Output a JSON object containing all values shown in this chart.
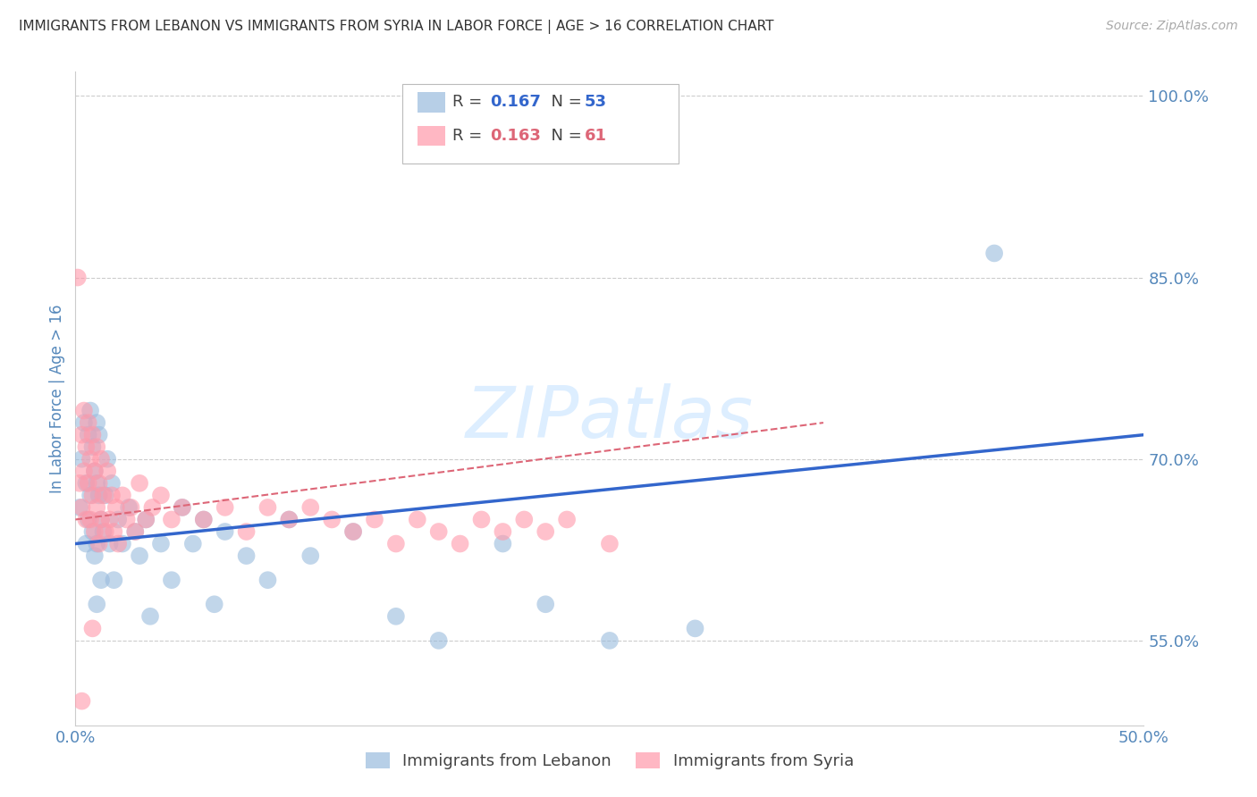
{
  "title": "IMMIGRANTS FROM LEBANON VS IMMIGRANTS FROM SYRIA IN LABOR FORCE | AGE > 16 CORRELATION CHART",
  "source": "Source: ZipAtlas.com",
  "ylabel": "In Labor Force | Age > 16",
  "xlim": [
    0.0,
    0.5
  ],
  "ylim": [
    0.48,
    1.02
  ],
  "yticks": [
    0.55,
    0.7,
    0.85,
    1.0
  ],
  "ytick_labels": [
    "55.0%",
    "70.0%",
    "85.0%",
    "100.0%"
  ],
  "xticks": [
    0.0,
    0.5
  ],
  "xtick_labels": [
    "0.0%",
    "50.0%"
  ],
  "lebanon_R": 0.167,
  "lebanon_N": 53,
  "syria_R": 0.163,
  "syria_N": 61,
  "lebanon_color": "#99BBDD",
  "syria_color": "#FF99AA",
  "lebanon_line_color": "#3366CC",
  "syria_line_color": "#DD6677",
  "background_color": "#FFFFFF",
  "grid_color": "#CCCCCC",
  "watermark": "ZIPatlas",
  "watermark_color": "#DDEEFF",
  "title_color": "#333333",
  "tick_color": "#5588BB",
  "legend_label_lebanon": "Immigrants from Lebanon",
  "legend_label_syria": "Immigrants from Syria",
  "lebanon_scatter_x": [
    0.002,
    0.003,
    0.004,
    0.005,
    0.005,
    0.006,
    0.006,
    0.007,
    0.007,
    0.008,
    0.008,
    0.009,
    0.009,
    0.01,
    0.01,
    0.01,
    0.01,
    0.011,
    0.011,
    0.012,
    0.012,
    0.013,
    0.014,
    0.015,
    0.016,
    0.017,
    0.018,
    0.02,
    0.022,
    0.025,
    0.028,
    0.03,
    0.033,
    0.035,
    0.04,
    0.045,
    0.05,
    0.055,
    0.06,
    0.065,
    0.07,
    0.08,
    0.09,
    0.1,
    0.11,
    0.13,
    0.15,
    0.17,
    0.2,
    0.22,
    0.25,
    0.29,
    0.43
  ],
  "lebanon_scatter_y": [
    0.66,
    0.7,
    0.73,
    0.68,
    0.63,
    0.72,
    0.65,
    0.74,
    0.67,
    0.71,
    0.64,
    0.69,
    0.62,
    0.73,
    0.68,
    0.63,
    0.58,
    0.67,
    0.72,
    0.65,
    0.6,
    0.64,
    0.67,
    0.7,
    0.63,
    0.68,
    0.6,
    0.65,
    0.63,
    0.66,
    0.64,
    0.62,
    0.65,
    0.57,
    0.63,
    0.6,
    0.66,
    0.63,
    0.65,
    0.58,
    0.64,
    0.62,
    0.6,
    0.65,
    0.62,
    0.64,
    0.57,
    0.55,
    0.63,
    0.58,
    0.55,
    0.56,
    0.87
  ],
  "syria_scatter_x": [
    0.001,
    0.002,
    0.003,
    0.003,
    0.004,
    0.004,
    0.005,
    0.005,
    0.006,
    0.006,
    0.007,
    0.007,
    0.008,
    0.008,
    0.009,
    0.009,
    0.01,
    0.01,
    0.011,
    0.011,
    0.012,
    0.012,
    0.013,
    0.014,
    0.015,
    0.016,
    0.017,
    0.018,
    0.019,
    0.02,
    0.022,
    0.024,
    0.026,
    0.028,
    0.03,
    0.033,
    0.036,
    0.04,
    0.045,
    0.05,
    0.06,
    0.07,
    0.08,
    0.09,
    0.1,
    0.11,
    0.12,
    0.13,
    0.14,
    0.15,
    0.16,
    0.17,
    0.18,
    0.19,
    0.2,
    0.21,
    0.22,
    0.23,
    0.25,
    0.003,
    0.008
  ],
  "syria_scatter_y": [
    0.85,
    0.68,
    0.72,
    0.66,
    0.74,
    0.69,
    0.71,
    0.65,
    0.73,
    0.68,
    0.7,
    0.65,
    0.72,
    0.67,
    0.69,
    0.64,
    0.71,
    0.66,
    0.68,
    0.63,
    0.7,
    0.65,
    0.67,
    0.64,
    0.69,
    0.65,
    0.67,
    0.64,
    0.66,
    0.63,
    0.67,
    0.65,
    0.66,
    0.64,
    0.68,
    0.65,
    0.66,
    0.67,
    0.65,
    0.66,
    0.65,
    0.66,
    0.64,
    0.66,
    0.65,
    0.66,
    0.65,
    0.64,
    0.65,
    0.63,
    0.65,
    0.64,
    0.63,
    0.65,
    0.64,
    0.65,
    0.64,
    0.65,
    0.63,
    0.5,
    0.56
  ],
  "lebanon_line_x": [
    0.0,
    0.5
  ],
  "lebanon_line_y": [
    0.63,
    0.72
  ],
  "syria_line_x": [
    0.0,
    0.35
  ],
  "syria_line_y": [
    0.65,
    0.73
  ]
}
